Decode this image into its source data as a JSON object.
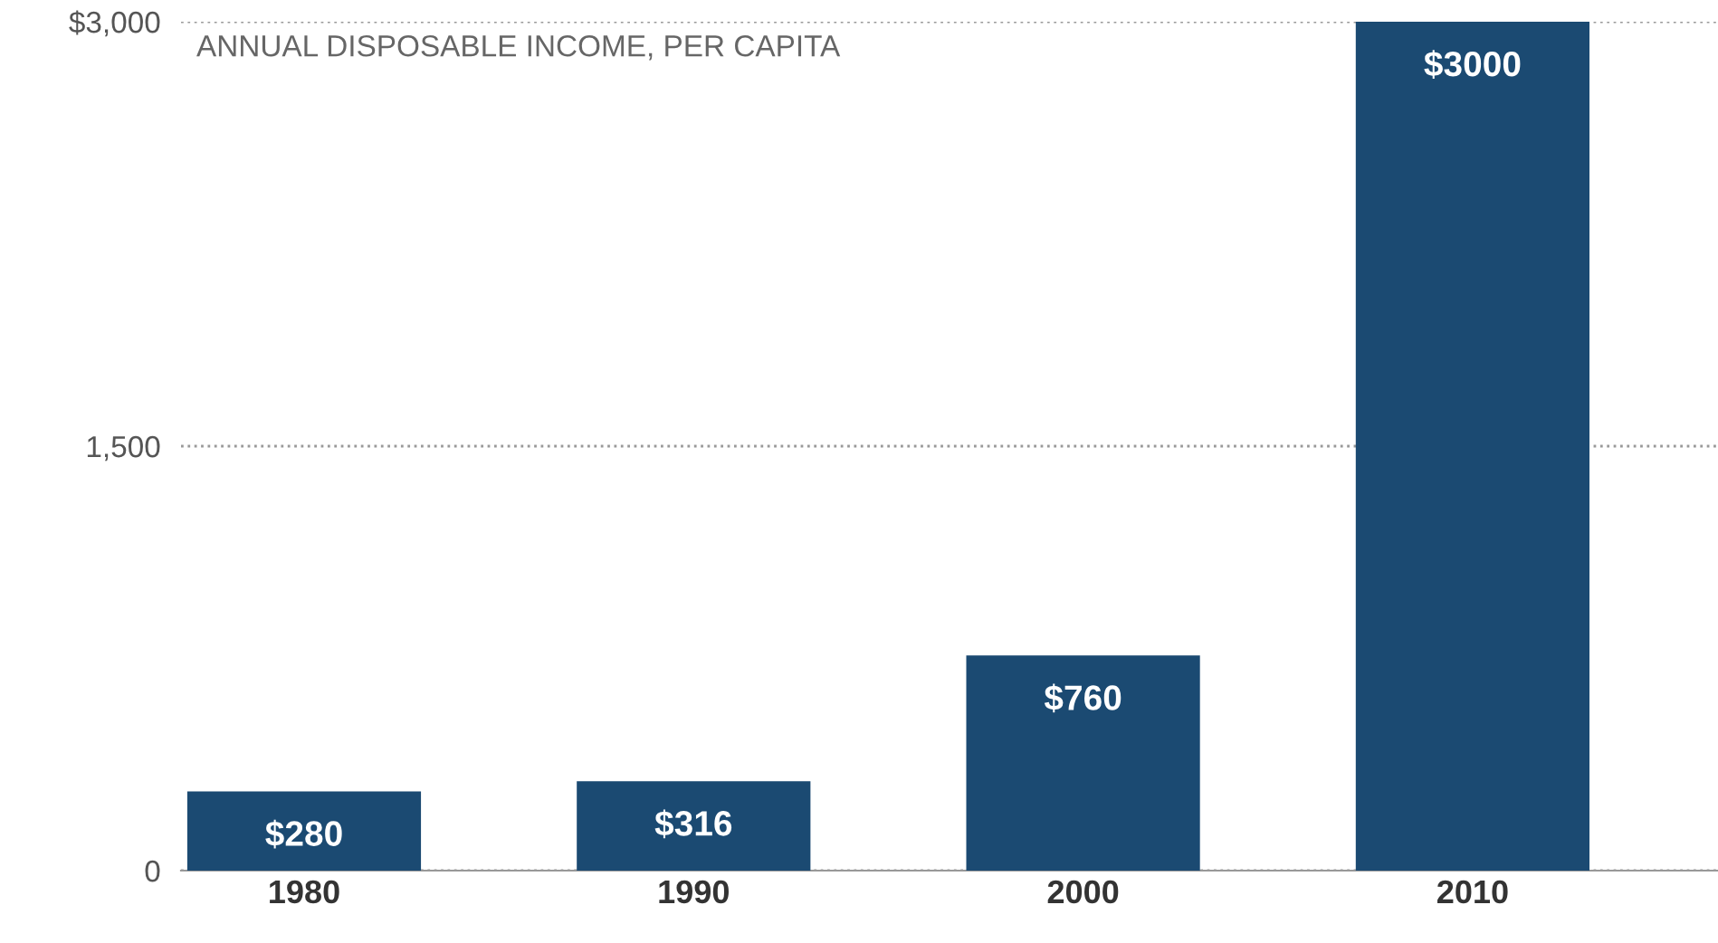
{
  "chart_data": {
    "type": "bar",
    "title": "ANNUAL DISPOSABLE INCOME, PER CAPITA",
    "categories": [
      "1980",
      "1990",
      "2000",
      "2010"
    ],
    "values": [
      280,
      316,
      760,
      3000
    ],
    "value_labels": [
      "$280",
      "$316",
      "$760",
      "$3000"
    ],
    "color": "#1b4a72",
    "ylim": [
      0,
      3000
    ],
    "yticks": [
      {
        "value": 0,
        "label": "0"
      },
      {
        "value": 1500,
        "label": "1,500"
      },
      {
        "value": 3000,
        "label": "$3,000"
      }
    ],
    "grid": "y",
    "legend": false
  }
}
